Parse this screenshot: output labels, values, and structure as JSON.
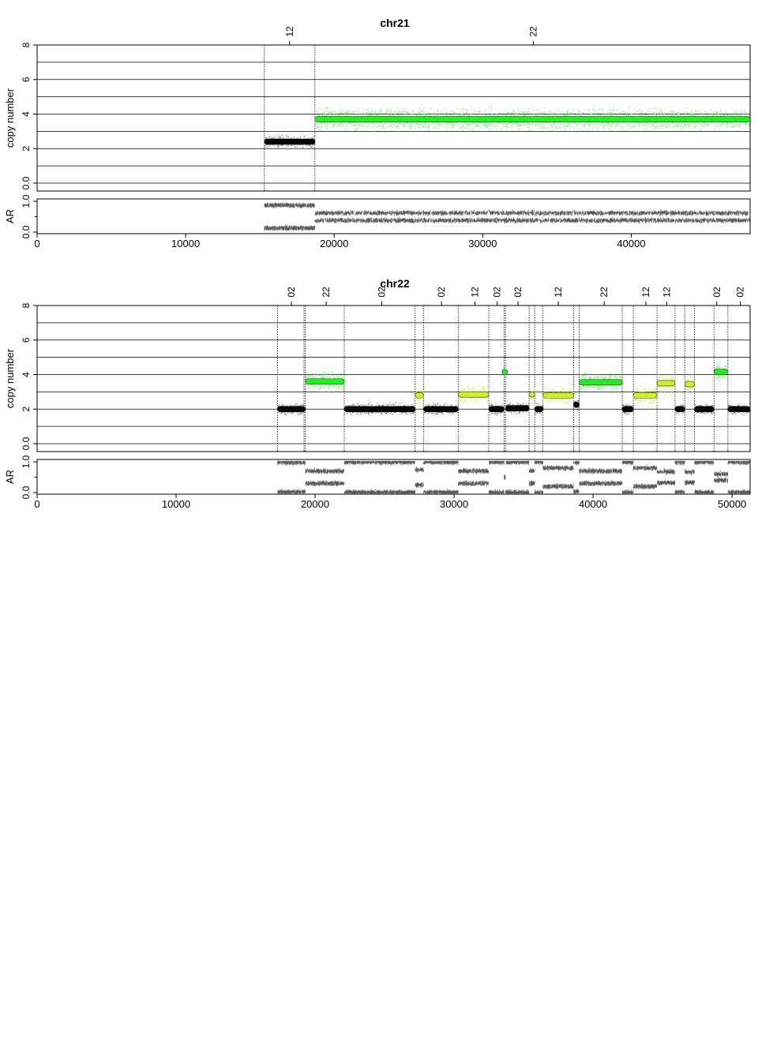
{
  "chart_data": [
    {
      "type": "scatter",
      "title": "chr21",
      "xlim": [
        0,
        48000
      ],
      "x_ticks": [
        0,
        10000,
        20000,
        30000,
        40000
      ],
      "x_tick_labels": [
        "0",
        "10000",
        "20000",
        "30000",
        "40000"
      ],
      "cn_panel": {
        "ylabel": "copy number",
        "ylim": [
          0,
          8
        ],
        "y_ticks": [
          0,
          2,
          4,
          6,
          8
        ],
        "y_tick_labels": [
          "0.0",
          "2",
          "4",
          "6",
          "8"
        ],
        "gridlines": [
          0,
          1,
          2,
          3,
          4,
          5,
          6,
          7,
          8
        ]
      },
      "ar_panel": {
        "ylabel": "AR",
        "ylim": [
          0,
          1
        ],
        "y_ticks": [
          0,
          1
        ],
        "y_tick_labels": [
          "0.0",
          "1.0"
        ]
      },
      "band_labels": [
        {
          "x": 17000,
          "label": "12"
        },
        {
          "x": 33400,
          "label": "22"
        }
      ],
      "segment_boundaries": [
        15300,
        18700,
        48000
      ],
      "segments": [
        {
          "start": 15300,
          "end": 18700,
          "cn": 2.4,
          "color": "#000000",
          "ar": [
            0.13,
            0.87
          ]
        },
        {
          "start": 18700,
          "end": 48000,
          "cn": 3.7,
          "color": "#22ee22",
          "ar": [
            0.38,
            0.62
          ]
        }
      ]
    },
    {
      "type": "scatter",
      "title": "chr22",
      "xlim": [
        0,
        51300
      ],
      "x_ticks": [
        0,
        10000,
        20000,
        30000,
        40000,
        50000
      ],
      "x_tick_labels": [
        "0",
        "10000",
        "20000",
        "30000",
        "40000",
        "50000"
      ],
      "cn_panel": {
        "ylabel": "copy number",
        "ylim": [
          0,
          8
        ],
        "y_ticks": [
          0,
          2,
          4,
          6,
          8
        ],
        "y_tick_labels": [
          "0.0",
          "2",
          "4",
          "6",
          "8"
        ],
        "gridlines": [
          0,
          1,
          2,
          3,
          4,
          5,
          6,
          7,
          8
        ]
      },
      "ar_panel": {
        "ylabel": "AR",
        "ylim": [
          0,
          1
        ],
        "y_ticks": [
          0,
          1
        ],
        "y_tick_labels": [
          "0.0",
          "1.0"
        ]
      },
      "band_labels": [
        {
          "x": 18300,
          "label": "02"
        },
        {
          "x": 20800,
          "label": "22"
        },
        {
          "x": 24800,
          "label": "02"
        },
        {
          "x": 29100,
          "label": "02"
        },
        {
          "x": 31500,
          "label": "12"
        },
        {
          "x": 33100,
          "label": "02"
        },
        {
          "x": 34600,
          "label": "02"
        },
        {
          "x": 37500,
          "label": "12"
        },
        {
          "x": 40800,
          "label": "22"
        },
        {
          "x": 43800,
          "label": "12"
        },
        {
          "x": 45300,
          "label": "12"
        },
        {
          "x": 48900,
          "label": "02"
        },
        {
          "x": 50600,
          "label": "02"
        }
      ],
      "segment_boundaries": [
        17300,
        19200,
        19300,
        22100,
        27200,
        27800,
        30300,
        32500,
        33600,
        33700,
        35400,
        35800,
        36400,
        38600,
        39000,
        42100,
        42900,
        44600,
        45900,
        46600,
        47300,
        48700,
        49700,
        51300
      ],
      "segments": [
        {
          "start": 17300,
          "end": 19300,
          "cn": 2.0,
          "color": "#000000",
          "ar": [
            0.02,
            0.98
          ]
        },
        {
          "start": 19300,
          "end": 22100,
          "cn": 3.6,
          "color": "#22ee22",
          "ar": [
            0.3,
            0.7
          ]
        },
        {
          "start": 22100,
          "end": 27200,
          "cn": 2.0,
          "color": "#000000",
          "ar": [
            0.01,
            0.99
          ]
        },
        {
          "start": 27200,
          "end": 27800,
          "cn": 2.8,
          "color": "#ccf02a",
          "ar": [
            0.25,
            0.75
          ]
        },
        {
          "start": 27800,
          "end": 30300,
          "cn": 2.0,
          "color": "#000000",
          "ar": [
            0.01,
            0.99
          ]
        },
        {
          "start": 30300,
          "end": 32500,
          "cn": 2.85,
          "color": "#ccf02a",
          "ar": [
            0.3,
            0.7
          ]
        },
        {
          "start": 32500,
          "end": 33600,
          "cn": 2.0,
          "color": "#000000",
          "ar": [
            0.01,
            0.99
          ]
        },
        {
          "start": 33600,
          "end": 33700,
          "cn": 4.15,
          "color": "#22ee22",
          "ar": [
            0.5,
            0.5
          ]
        },
        {
          "start": 33700,
          "end": 35400,
          "cn": 2.05,
          "color": "#000000",
          "ar": [
            0.01,
            0.99
          ]
        },
        {
          "start": 35400,
          "end": 35800,
          "cn": 2.85,
          "color": "#ccf02a",
          "ar": [
            0.3,
            0.7
          ]
        },
        {
          "start": 35800,
          "end": 36400,
          "cn": 2.0,
          "color": "#000000",
          "ar": [
            0.01,
            0.99
          ]
        },
        {
          "start": 36400,
          "end": 38600,
          "cn": 2.8,
          "color": "#ccf02a",
          "ar": [
            0.2,
            0.8
          ]
        },
        {
          "start": 38600,
          "end": 39000,
          "cn": 2.25,
          "color": "#000000",
          "ar": [
            0.03,
            0.97
          ]
        },
        {
          "start": 39000,
          "end": 42100,
          "cn": 3.55,
          "color": "#22ee22",
          "ar": [
            0.3,
            0.7
          ]
        },
        {
          "start": 42100,
          "end": 42900,
          "cn": 2.0,
          "color": "#000000",
          "ar": [
            0.01,
            0.99
          ]
        },
        {
          "start": 42900,
          "end": 44600,
          "cn": 2.8,
          "color": "#ccf02a",
          "ar": [
            0.2,
            0.8
          ]
        },
        {
          "start": 44600,
          "end": 45900,
          "cn": 3.5,
          "color": "#ccf02a",
          "ar": [
            0.32,
            0.68
          ]
        },
        {
          "start": 45900,
          "end": 46600,
          "cn": 2.0,
          "color": "#000000",
          "ar": [
            0.01,
            0.99
          ]
        },
        {
          "start": 46600,
          "end": 47300,
          "cn": 3.45,
          "color": "#ccf02a",
          "ar": [
            0.33,
            0.67
          ]
        },
        {
          "start": 47300,
          "end": 48700,
          "cn": 2.0,
          "color": "#000000",
          "ar": [
            0.01,
            0.99
          ]
        },
        {
          "start": 48700,
          "end": 49700,
          "cn": 4.15,
          "color": "#22ee22",
          "ar": [
            0.4,
            0.6
          ]
        },
        {
          "start": 49700,
          "end": 51300,
          "cn": 2.0,
          "color": "#000000",
          "ar": [
            0.01,
            0.99
          ]
        }
      ]
    }
  ]
}
